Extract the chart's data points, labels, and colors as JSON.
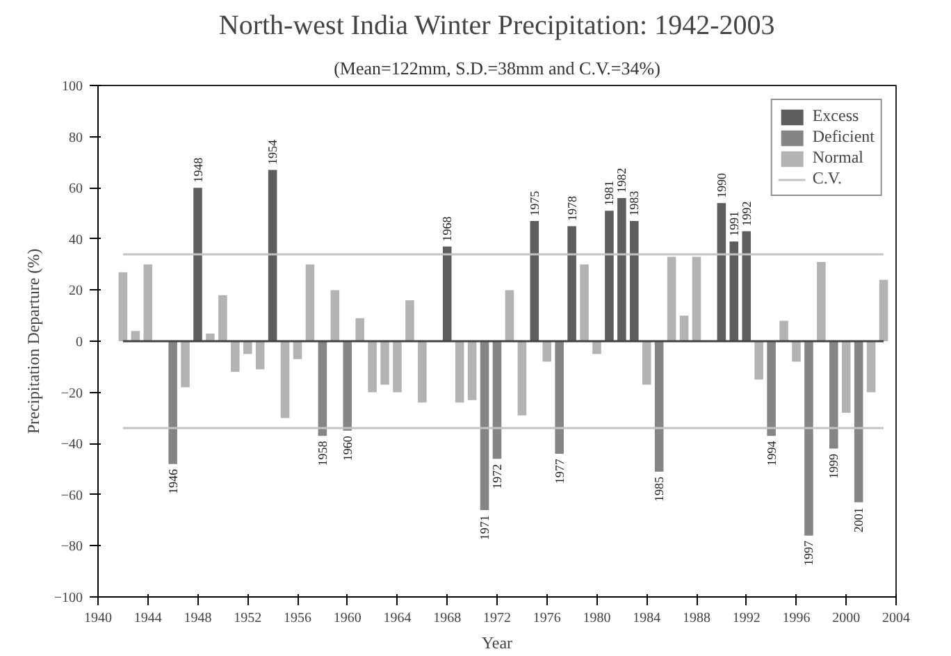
{
  "chart_data": {
    "type": "bar",
    "title": "North-west India Winter Precipitation: 1942-2003",
    "subtitle": "(Mean=122mm, S.D.=38mm and C.V.=34%)",
    "xlabel": "Year",
    "ylabel": "Precipitation Departure (%)",
    "x": [
      1942,
      1943,
      1944,
      1945,
      1946,
      1947,
      1948,
      1949,
      1950,
      1951,
      1952,
      1953,
      1954,
      1955,
      1956,
      1957,
      1958,
      1959,
      1960,
      1961,
      1962,
      1963,
      1964,
      1965,
      1966,
      1967,
      1968,
      1969,
      1970,
      1971,
      1972,
      1973,
      1974,
      1975,
      1976,
      1977,
      1978,
      1979,
      1980,
      1981,
      1982,
      1983,
      1984,
      1985,
      1986,
      1987,
      1988,
      1989,
      1990,
      1991,
      1992,
      1993,
      1994,
      1995,
      1996,
      1997,
      1998,
      1999,
      2000,
      2001,
      2002,
      2003
    ],
    "series": [
      {
        "name": "Excess",
        "color": "#5e5e5e",
        "values": [
          null,
          null,
          null,
          null,
          null,
          null,
          60,
          null,
          null,
          null,
          null,
          null,
          67,
          null,
          null,
          null,
          null,
          null,
          null,
          null,
          null,
          null,
          null,
          null,
          null,
          null,
          37,
          null,
          null,
          null,
          null,
          null,
          null,
          47,
          null,
          null,
          45,
          null,
          null,
          51,
          56,
          47,
          null,
          null,
          null,
          null,
          null,
          null,
          54,
          39,
          43,
          null,
          null,
          null,
          null,
          null,
          null,
          null,
          null,
          null,
          null,
          null
        ]
      },
      {
        "name": "Deficient",
        "color": "#858585",
        "values": [
          null,
          null,
          null,
          null,
          -48,
          null,
          null,
          null,
          null,
          null,
          null,
          null,
          null,
          null,
          null,
          null,
          -37,
          null,
          -35,
          null,
          null,
          null,
          null,
          null,
          null,
          null,
          null,
          null,
          null,
          -66,
          -46,
          null,
          null,
          null,
          null,
          -44,
          null,
          null,
          null,
          null,
          null,
          null,
          null,
          -51,
          null,
          null,
          null,
          null,
          null,
          null,
          null,
          null,
          -37,
          null,
          null,
          -76,
          null,
          -42,
          null,
          -63,
          null,
          null
        ]
      },
      {
        "name": "Normal",
        "color": "#b3b3b3",
        "values": [
          27,
          4,
          30,
          0,
          null,
          -18,
          null,
          3,
          18,
          -12,
          -5,
          -11,
          null,
          -30,
          -7,
          30,
          null,
          20,
          null,
          9,
          -20,
          -17,
          -20,
          16,
          -24,
          0,
          null,
          -24,
          -23,
          null,
          null,
          20,
          -29,
          null,
          -8,
          null,
          null,
          30,
          -5,
          null,
          null,
          null,
          -17,
          null,
          33,
          10,
          33,
          0,
          null,
          null,
          null,
          -15,
          null,
          8,
          -8,
          null,
          31,
          null,
          -28,
          null,
          -20,
          24
        ]
      }
    ],
    "annotations": [
      {
        "text": "1948",
        "x": 1948,
        "y": 60
      },
      {
        "text": "1954",
        "x": 1954,
        "y": 67
      },
      {
        "text": "1968",
        "x": 1968,
        "y": 37
      },
      {
        "text": "1975",
        "x": 1975,
        "y": 47
      },
      {
        "text": "1978",
        "x": 1978,
        "y": 45
      },
      {
        "text": "1981",
        "x": 1981,
        "y": 51
      },
      {
        "text": "1982",
        "x": 1982,
        "y": 56
      },
      {
        "text": "1983",
        "x": 1983,
        "y": 47
      },
      {
        "text": "1990",
        "x": 1990,
        "y": 54
      },
      {
        "text": "1991",
        "x": 1991,
        "y": 39
      },
      {
        "text": "1992",
        "x": 1992,
        "y": 43
      },
      {
        "text": "1946",
        "x": 1946,
        "y": -48
      },
      {
        "text": "1958",
        "x": 1958,
        "y": -37
      },
      {
        "text": "1960",
        "x": 1960,
        "y": -35
      },
      {
        "text": "1971",
        "x": 1971,
        "y": -66
      },
      {
        "text": "1972",
        "x": 1972,
        "y": -46
      },
      {
        "text": "1977",
        "x": 1977,
        "y": -44
      },
      {
        "text": "1985",
        "x": 1985,
        "y": -51
      },
      {
        "text": "1994",
        "x": 1994,
        "y": -37
      },
      {
        "text": "1997",
        "x": 1997,
        "y": -76
      },
      {
        "text": "1999",
        "x": 1999,
        "y": -42
      },
      {
        "text": "2001",
        "x": 2001,
        "y": -63
      }
    ],
    "ref_lines": [
      {
        "axis": "y",
        "value": 34,
        "label": "C.V.",
        "color": "#c4c4c4"
      },
      {
        "axis": "y",
        "value": -34,
        "color": "#c4c4c4"
      },
      {
        "axis": "y",
        "value": 0,
        "color": "#444444"
      }
    ],
    "xlim": [
      1940,
      2004
    ],
    "xticks": [
      1940,
      1944,
      1948,
      1952,
      1956,
      1960,
      1964,
      1968,
      1972,
      1976,
      1980,
      1984,
      1988,
      1992,
      1996,
      2000,
      2004
    ],
    "ylim": [
      -100,
      100
    ],
    "yticks": [
      -100,
      -80,
      -60,
      -40,
      -20,
      0,
      20,
      40,
      60,
      80,
      100
    ],
    "grid": false,
    "legend": "top right"
  }
}
